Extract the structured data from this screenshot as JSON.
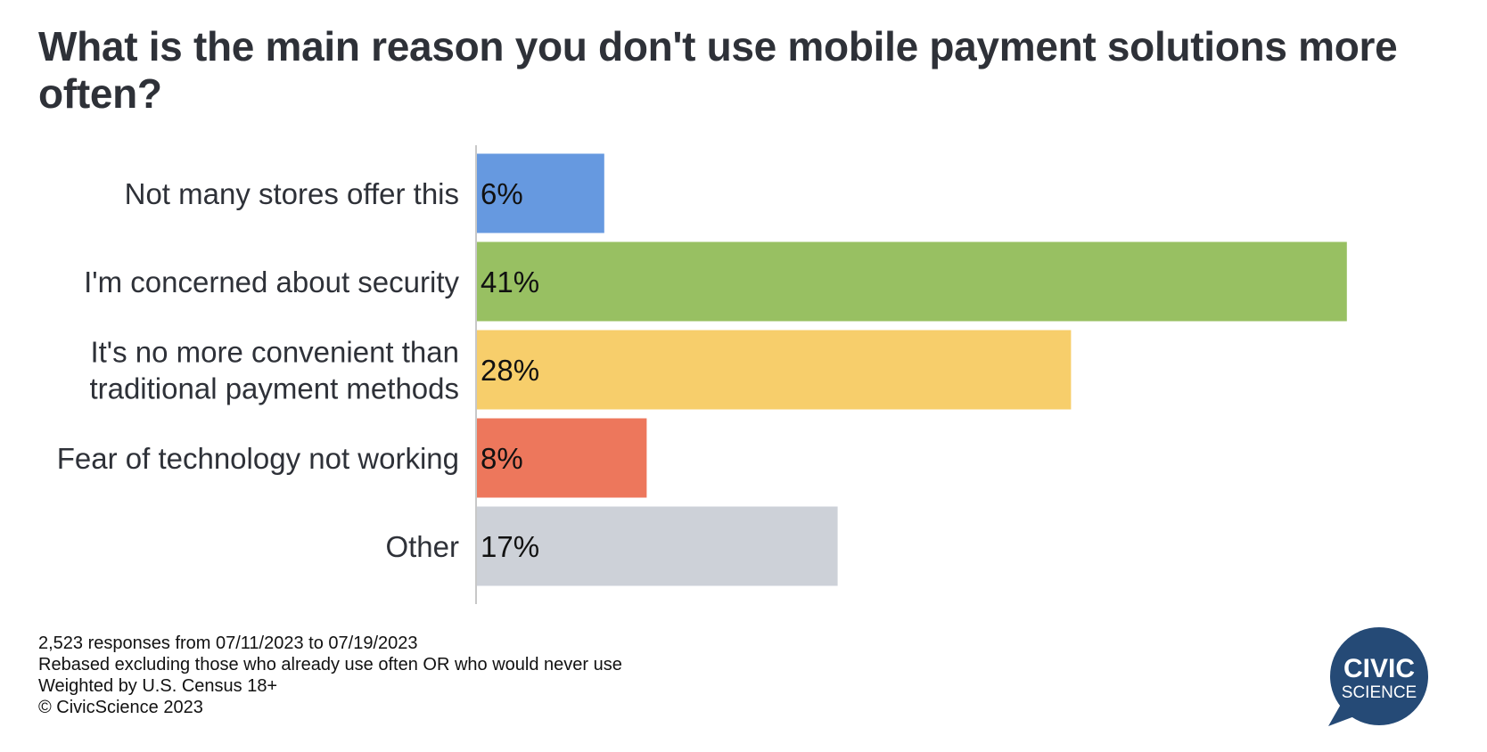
{
  "title": "What is the main reason you don't use mobile payment solutions more often?",
  "chart_data": {
    "type": "bar",
    "orientation": "horizontal",
    "title": "What is the main reason you don't use mobile payment solutions more often?",
    "categories": [
      [
        "Not many stores offer this"
      ],
      [
        "I'm concerned about security"
      ],
      [
        "It's no more convenient than",
        "traditional payment methods"
      ],
      [
        "Fear of technology not working"
      ],
      [
        "Other"
      ]
    ],
    "values": [
      6,
      41,
      28,
      8,
      17
    ],
    "value_labels": [
      "6%",
      "41%",
      "28%",
      "8%",
      "17%"
    ],
    "colors": [
      "#6699e0",
      "#98c062",
      "#f7ce6b",
      "#ed775c",
      "#cdd1d8"
    ],
    "xlim": [
      0,
      45
    ],
    "grid": false,
    "legend": "none",
    "xlabel": "",
    "ylabel": ""
  },
  "footer": {
    "lines": [
      "2,523 responses from 07/11/2023 to 07/19/2023",
      "Rebased excluding those who already use often OR who would never use",
      "Weighted by U.S. Census 18+",
      "© CivicScience 2023"
    ]
  },
  "logo": {
    "line1": "CIVIC",
    "line2": "SCIENCE",
    "color": "#254a76"
  }
}
